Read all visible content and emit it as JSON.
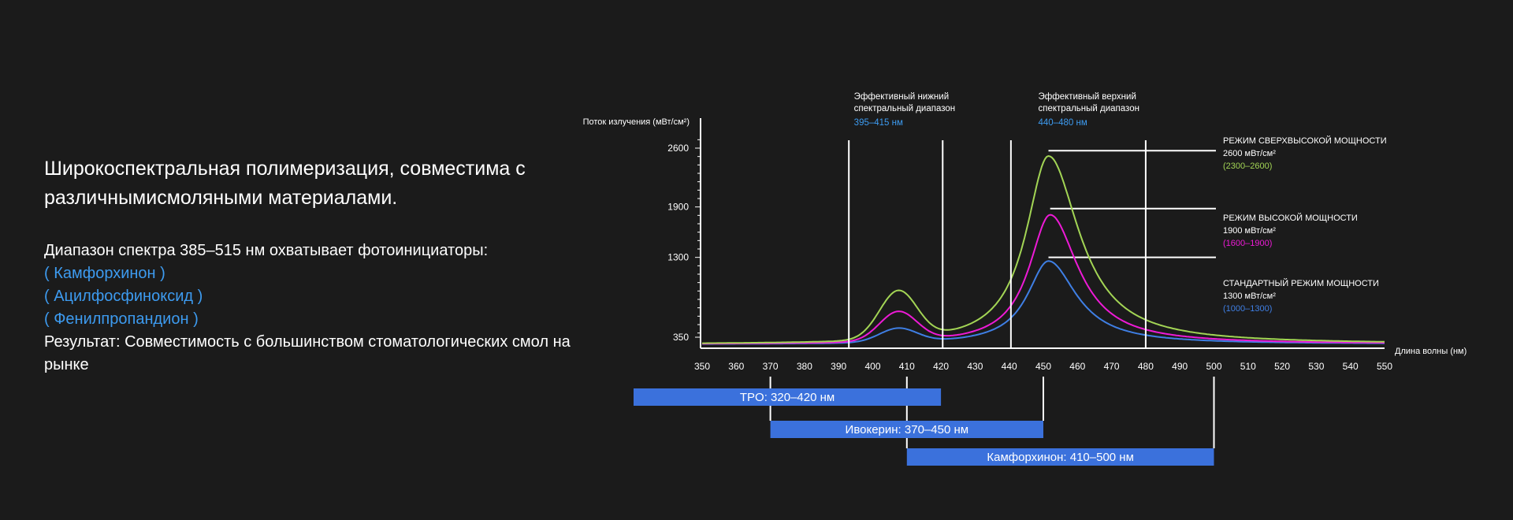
{
  "left": {
    "headline": "Широкоспектральная полимеризация, совместима с различнымисмоляными материалами.",
    "intro": "Диапазон спектра 385–515 нм охватывает фотоинициаторы:",
    "initiators": [
      " ( Камфорхинон )",
      " ( Ацилфосфиноксид )",
      "( Фенилпропандион )"
    ],
    "result": "Результат: Совместимость с большинством стоматологических смол на рынке"
  },
  "chart_data": {
    "type": "line",
    "ylabel": "Поток излучения (мВт/см²)",
    "xlabel": "Длина волны (нм)",
    "xlim": [
      350,
      550
    ],
    "ylim": [
      200,
      2800
    ],
    "x_ticks": [
      350,
      360,
      370,
      380,
      390,
      400,
      410,
      420,
      430,
      440,
      450,
      460,
      470,
      480,
      490,
      500,
      510,
      520,
      530,
      540,
      550
    ],
    "y_ticks": [
      350,
      1300,
      1900,
      2600
    ],
    "colors": {
      "high_max": "#a3d555",
      "high": "#ee1ad6",
      "standard": "#3f7fe4",
      "bar": "#3b71dc",
      "accent": "#3d9bf0"
    },
    "series": [
      {
        "key": "high_max",
        "color": "#a3d555",
        "base": 265,
        "tail": 3,
        "peaks": [
          {
            "x": 407.5,
            "amp": 570,
            "sigma": 5.5
          },
          {
            "x": 451.5,
            "amp": 2240,
            "w_left": 8,
            "w_right": 11
          }
        ]
      },
      {
        "key": "high",
        "color": "#ee1ad6",
        "base": 265,
        "tail": 3,
        "peaks": [
          {
            "x": 407.5,
            "amp": 350,
            "sigma": 5.5
          },
          {
            "x": 452,
            "amp": 1540,
            "w_left": 7.5,
            "w_right": 10
          }
        ]
      },
      {
        "key": "standard",
        "color": "#3f7fe4",
        "base": 265,
        "tail": 3,
        "peaks": [
          {
            "x": 407.5,
            "amp": 165,
            "sigma": 5.5
          },
          {
            "x": 451.5,
            "amp": 990,
            "w_left": 7.5,
            "w_right": 10
          }
        ]
      }
    ],
    "vlines": [
      393,
      420.5,
      440.5,
      480
    ],
    "range_annotations": [
      {
        "line1": "Эффективный нижний",
        "line2": "спектральный диапазон",
        "range": "395–415 нм",
        "at": 394.5
      },
      {
        "line1": "Эффективный верхний",
        "line2": "спектральный диапазон",
        "range": "440–480 нм",
        "at": 448.5
      }
    ],
    "modes": [
      {
        "title": "РЕЖИМ СВЕРХВЫСОКОЙ МОЩНОСТИ",
        "value": "2600 мВт/см²",
        "range": "(2300–2600)",
        "color": "#a3d555",
        "y": 2570,
        "peak_x": 451.5
      },
      {
        "title": "РЕЖИМ ВЫСОКОЙ МОЩНОСТИ",
        "value": "1900 мВт/см²",
        "range": "(1600–1900)",
        "color": "#ee1ad6",
        "y": 1880,
        "peak_x": 452
      },
      {
        "title": "СТАНДАРТНЫЙ РЕЖИМ МОЩНОСТИ",
        "value": "1300 мВт/см²",
        "range": "(1000–1300)",
        "color": "#3f7fe4",
        "y": 1300,
        "peak_x": 451.5
      }
    ],
    "bars": [
      {
        "label": "TPO: 320–420 нм",
        "start": 320,
        "end": 420,
        "row": 0,
        "ticks": []
      },
      {
        "label": "Ивокерин: 370–450 нм",
        "start": 370,
        "end": 450,
        "row": 1,
        "ticks": [
          370,
          450
        ]
      },
      {
        "label": "Камфорхинон: 410–500 нм",
        "start": 410,
        "end": 500,
        "row": 2,
        "ticks": [
          410,
          500
        ]
      }
    ]
  }
}
